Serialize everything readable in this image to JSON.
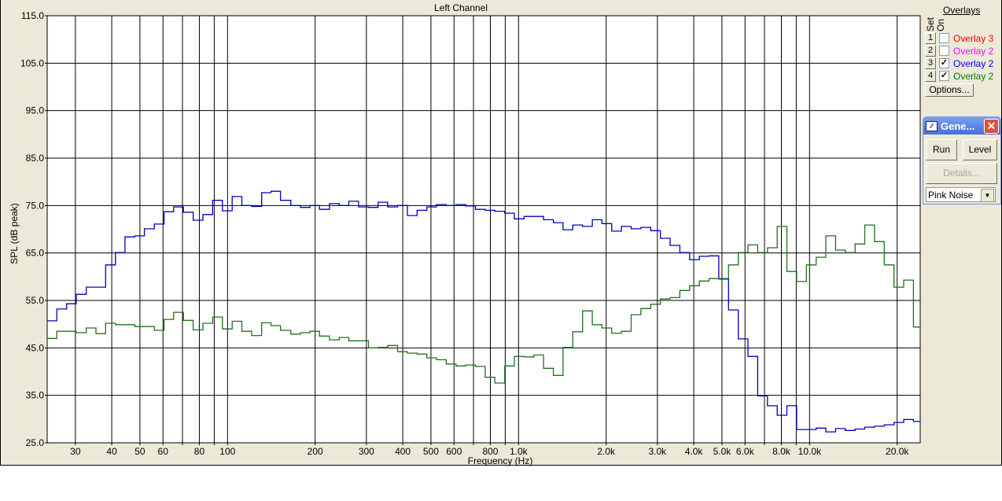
{
  "title": "Left Channel",
  "panel": {
    "overlays_heading": "Overlays",
    "set_label": "Set",
    "on_label": "On",
    "overlays": [
      {
        "set": "1",
        "checked": false,
        "label": "Overlay 3",
        "color": "#ff0000"
      },
      {
        "set": "2",
        "checked": false,
        "label": "Overlay 2",
        "color": "#ff00ff"
      },
      {
        "set": "3",
        "checked": true,
        "label": "Overlay 2",
        "color": "#0000ff"
      },
      {
        "set": "4",
        "checked": true,
        "label": "Overlay 2",
        "color": "#008000"
      }
    ],
    "options_label": "Options...",
    "generator": {
      "title": "Gene...",
      "run_label": "Run",
      "level_label": "Level",
      "details_label": "Details...",
      "signal_value": "Pink Noise"
    }
  },
  "chart_data": {
    "type": "line",
    "title": "Left Channel",
    "xlabel": "Frequency (Hz)",
    "ylabel": "SPL (dB peak)",
    "xscale": "log",
    "xlim": [
      24,
      24000
    ],
    "ylim": [
      25,
      115
    ],
    "yticks": [
      "25.0",
      "35.0",
      "45.0",
      "55.0",
      "65.0",
      "75.0",
      "85.0",
      "95.0",
      "105.0",
      "115.0"
    ],
    "xticks": [
      {
        "v": 30,
        "l": "30"
      },
      {
        "v": 40,
        "l": "40"
      },
      {
        "v": 50,
        "l": "50"
      },
      {
        "v": 60,
        "l": "60"
      },
      {
        "v": 70,
        "l": ""
      },
      {
        "v": 80,
        "l": "80"
      },
      {
        "v": 90,
        "l": ""
      },
      {
        "v": 100,
        "l": "100"
      },
      {
        "v": 200,
        "l": "200"
      },
      {
        "v": 300,
        "l": "300"
      },
      {
        "v": 400,
        "l": "400"
      },
      {
        "v": 500,
        "l": "500"
      },
      {
        "v": 600,
        "l": "600"
      },
      {
        "v": 700,
        "l": ""
      },
      {
        "v": 800,
        "l": "800"
      },
      {
        "v": 900,
        "l": ""
      },
      {
        "v": 1000,
        "l": "1.0k"
      },
      {
        "v": 2000,
        "l": "2.0k"
      },
      {
        "v": 3000,
        "l": "3.0k"
      },
      {
        "v": 4000,
        "l": "4.0k"
      },
      {
        "v": 5000,
        "l": "5.0k"
      },
      {
        "v": 6000,
        "l": "6.0k"
      },
      {
        "v": 7000,
        "l": ""
      },
      {
        "v": 8000,
        "l": "8.0k"
      },
      {
        "v": 9000,
        "l": ""
      },
      {
        "v": 10000,
        "l": "10.0k"
      },
      {
        "v": 20000,
        "l": "20.0k"
      }
    ],
    "grid": true,
    "step": true,
    "x": [
      24.0,
      25.9,
      28.0,
      30.2,
      32.7,
      35.3,
      38.1,
      41.2,
      44.4,
      48.0,
      51.8,
      56.0,
      60.5,
      65.3,
      70.5,
      76.2,
      82.3,
      88.9,
      96.0,
      103.7,
      112,
      121,
      131,
      141,
      152,
      165,
      178,
      192,
      207,
      224,
      242,
      261,
      282,
      305,
      329,
      355,
      384,
      415,
      448,
      484,
      522,
      564,
      610,
      658,
      711,
      768,
      829,
      896,
      967,
      1045,
      1129,
      1219,
      1317,
      1422,
      1536,
      1659,
      1792,
      1935,
      2090,
      2257,
      2438,
      2633,
      2844,
      3072,
      3318,
      3583,
      3870,
      4180,
      4515,
      4876,
      5266,
      5688,
      6144,
      6635,
      7167,
      7740,
      8360,
      9029,
      9752,
      10533,
      11376,
      12287,
      13270,
      14332,
      15479,
      16719,
      18057,
      19502,
      21063,
      22749
    ],
    "series": [
      {
        "color": "#0000c0",
        "values": [
          50.7,
          53.2,
          54.3,
          56.3,
          57.8,
          57.8,
          62.5,
          65.1,
          68.4,
          68.6,
          70.1,
          71.1,
          73.7,
          74.7,
          73.6,
          71.9,
          73.1,
          76.1,
          73.9,
          76.9,
          75.0,
          74.8,
          77.7,
          78.0,
          76.1,
          75.0,
          74.6,
          75.0,
          74.2,
          75.4,
          75.0,
          75.9,
          74.7,
          74.6,
          75.7,
          74.7,
          75.0,
          72.9,
          74.0,
          74.7,
          75.2,
          75.0,
          75.2,
          74.9,
          74.2,
          74.0,
          73.8,
          73.4,
          72.2,
          72.7,
          72.7,
          72.0,
          71.4,
          69.9,
          70.9,
          70.6,
          72.0,
          71.2,
          69.6,
          70.6,
          70.1,
          70.4,
          69.7,
          68.1,
          66.6,
          65.1,
          63.6,
          64.3,
          64.4,
          59.5,
          53.0,
          46.9,
          43.2,
          34.9,
          32.8,
          30.8,
          32.8,
          27.8,
          27.8,
          28.1,
          27.3,
          28.0,
          27.6,
          27.9,
          28.3,
          28.5,
          28.8,
          29.3,
          29.9,
          29.5
        ]
      },
      {
        "color": "#207020",
        "values": [
          47.0,
          48.5,
          48.5,
          48.2,
          49.2,
          48.0,
          50.2,
          49.9,
          49.9,
          49.5,
          49.5,
          48.7,
          51.0,
          52.5,
          50.8,
          48.8,
          50.2,
          51.5,
          49.0,
          50.6,
          48.5,
          47.6,
          50.3,
          49.7,
          48.7,
          47.9,
          48.2,
          48.5,
          47.5,
          46.7,
          47.2,
          46.5,
          46.5,
          45.0,
          45.1,
          45.5,
          44.2,
          43.9,
          43.7,
          42.9,
          42.5,
          41.6,
          41.2,
          41.4,
          41.1,
          38.8,
          37.6,
          41.2,
          43.2,
          43.1,
          43.5,
          40.7,
          39.2,
          45.1,
          48.4,
          52.8,
          49.9,
          49.2,
          48.1,
          48.5,
          52.0,
          53.3,
          54.2,
          55.3,
          55.6,
          57.1,
          58.1,
          59.1,
          59.6,
          59.6,
          62.5,
          65.1,
          66.7,
          65.1,
          66.1,
          70.6,
          61.1,
          59.0,
          62.5,
          64.1,
          68.6,
          65.6,
          65.1,
          66.9,
          70.9,
          67.4,
          62.5,
          57.8,
          59.3,
          49.4
        ]
      }
    ]
  }
}
